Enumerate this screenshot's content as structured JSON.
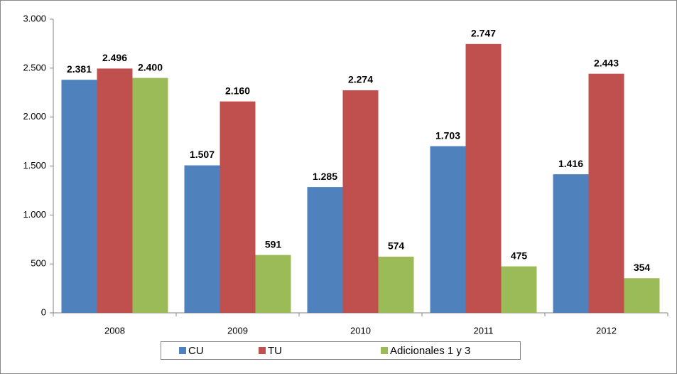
{
  "chart_data": {
    "type": "bar",
    "categories": [
      "2008",
      "2009",
      "2010",
      "2011",
      "2012"
    ],
    "series": [
      {
        "name": "CU",
        "color": "#4f81bd",
        "values": [
          2381,
          1507,
          1285,
          1703,
          1416
        ],
        "value_labels": [
          "2.381",
          "1.507",
          "1.285",
          "1.703",
          "1.416"
        ]
      },
      {
        "name": "TU",
        "color": "#c0504d",
        "values": [
          2496,
          2160,
          2274,
          2747,
          2443
        ],
        "value_labels": [
          "2.496",
          "2.160",
          "2.274",
          "2.747",
          "2.443"
        ]
      },
      {
        "name": "Adicionales 1 y 3",
        "color": "#9bbb59",
        "values": [
          2400,
          591,
          574,
          475,
          354
        ],
        "value_labels": [
          "2.400",
          "591",
          "574",
          "475",
          "354"
        ]
      }
    ],
    "ylim": [
      0,
      3000
    ],
    "yticks": [
      0,
      500,
      {
        "value": 1000,
        "label": "1.000"
      },
      {
        "value": 1500,
        "label": "1.500"
      },
      {
        "value": 2000,
        "label": "2.000"
      },
      {
        "value": 2500,
        "label": "2.500"
      },
      {
        "value": 3000,
        "label": "3.000"
      }
    ],
    "grid": false,
    "legend": "bottom"
  }
}
